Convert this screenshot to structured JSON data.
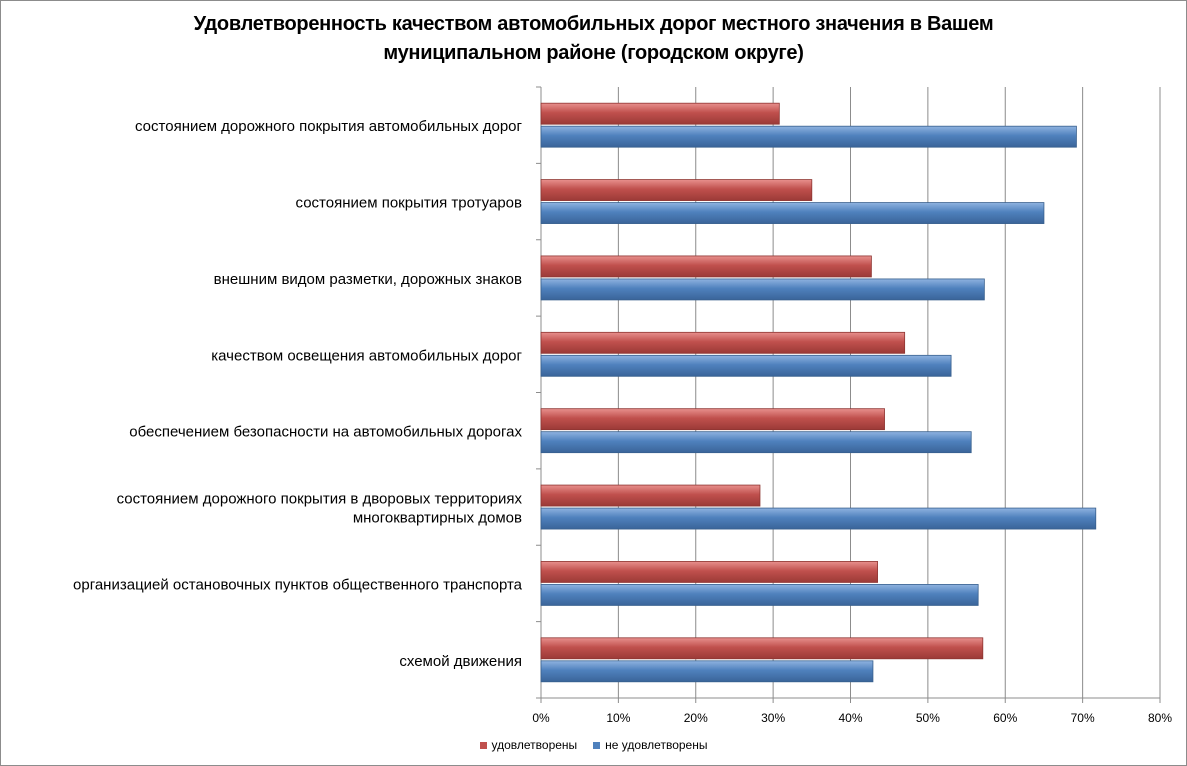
{
  "chart_data": {
    "type": "bar",
    "orientation": "horizontal",
    "title": [
      "Удовлетворенность качеством автомобильных дорог местного значения в Вашем",
      "муниципальном районе (городском округе)"
    ],
    "categories": [
      [
        "состоянием дорожного покрытия автомобильных дорог"
      ],
      [
        "состоянием покрытия тротуаров"
      ],
      [
        "внешним видом разметки, дорожных знаков"
      ],
      [
        "качеством освещения автомобильных дорог"
      ],
      [
        "обеспечением безопасности на автомобильных дорогах"
      ],
      [
        "состоянием дорожного покрытия в дворовых территориях",
        "многоквартирных домов"
      ],
      [
        "организацией остановочных пунктов общественного транспорта"
      ],
      [
        "схемой движения"
      ]
    ],
    "series": [
      {
        "name": "удовлетворены",
        "color": "#c0504d",
        "values": [
          30.8,
          35.0,
          42.7,
          47.0,
          44.4,
          28.3,
          43.5,
          57.1
        ]
      },
      {
        "name": "не удовлетворены",
        "color": "#4f81bd",
        "values": [
          69.2,
          65.0,
          57.3,
          53.0,
          55.6,
          71.7,
          56.5,
          42.9
        ]
      }
    ],
    "xlim": [
      0,
      80
    ],
    "xticks": [
      "0%",
      "10%",
      "20%",
      "30%",
      "40%",
      "50%",
      "60%",
      "70%",
      "80%"
    ],
    "grid": true,
    "legend_position": "bottom"
  }
}
